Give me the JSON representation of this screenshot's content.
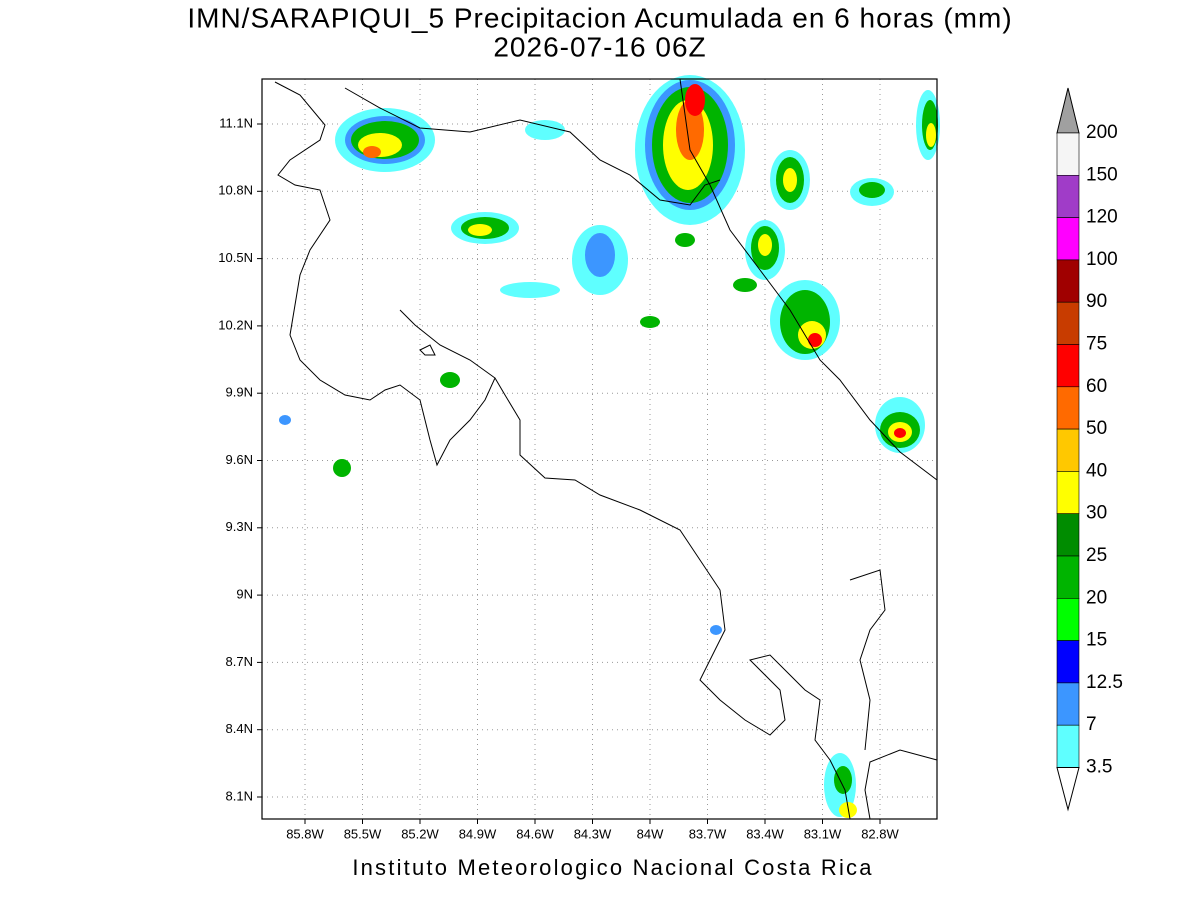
{
  "title": "IMN/SARAPIQUI_5 Precipitacion Acumulada en 6 horas (mm)",
  "subtitle": "2026-07-16 06Z",
  "map": {
    "lon_labels": [
      "85.8W",
      "85.5W",
      "85.2W",
      "84.9W",
      "84.6W",
      "84.3W",
      "84W",
      "83.7W",
      "83.4W",
      "83.1W",
      "82.8W"
    ],
    "lat_labels": [
      "11.1N",
      "10.8N",
      "10.5N",
      "10.2N",
      "9.9N",
      "9.6N",
      "9.3N",
      "9N",
      "8.7N",
      "8.4N",
      "8.1N"
    ]
  },
  "colorbar": {
    "labels": [
      "200",
      "150",
      "120",
      "100",
      "90",
      "75",
      "60",
      "50",
      "40",
      "30",
      "25",
      "20",
      "15",
      "12.5",
      "7",
      "3.5"
    ],
    "colors": [
      "#a0a0a0",
      "#f5f5f5",
      "#a03cc8",
      "#ff00ff",
      "#a00000",
      "#c83c00",
      "#ff0000",
      "#ff6a00",
      "#ffc800",
      "#ffff00",
      "#008c00",
      "#00b400",
      "#00ff00",
      "#0000ff",
      "#3c96ff",
      "#5fffff",
      "#ffffff"
    ]
  },
  "footer": "Instituto Meteorologico Nacional Costa Rica"
}
